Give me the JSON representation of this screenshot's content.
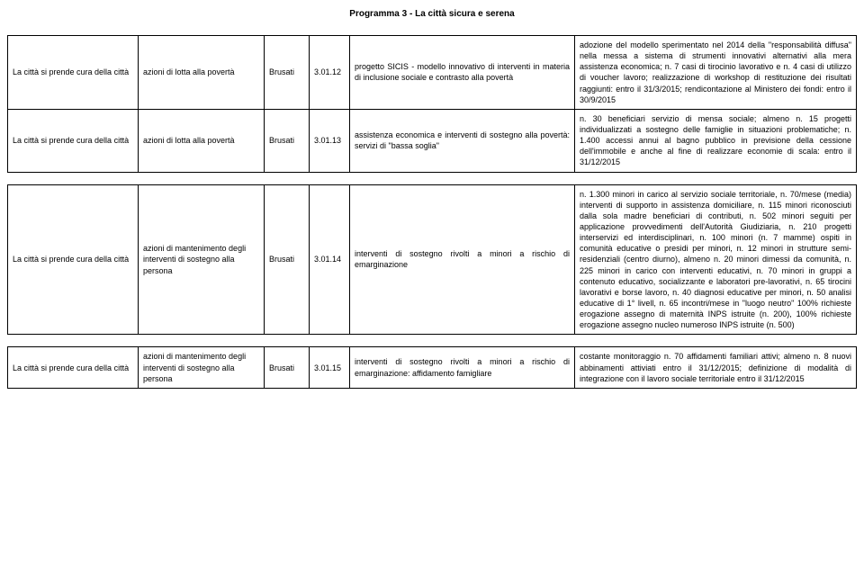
{
  "title": "Programma 3 - La città sicura e serena",
  "columns": [
    "citta",
    "azione",
    "responsabile",
    "codice",
    "descrizione",
    "indicatori"
  ],
  "rows": [
    {
      "citta": "La città si prende cura della città",
      "azione": "azioni di lotta alla povertà",
      "responsabile": "Brusati",
      "codice": "3.01.12",
      "descrizione": "progetto SICIS - modello innovativo di interventi in materia di inclusione sociale e contrasto alla povertà",
      "indicatori": "adozione del modello sperimentato nel 2014 della \"responsabilità diffusa\" nella messa a sistema di strumenti innovativi alternativi alla mera assistenza economica; n. 7 casi di tirocinio lavorativo e n. 4 casi di utilizzo di voucher lavoro; realizzazione di workshop di restituzione dei risultati raggiunti: entro il 31/3/2015; rendicontazione al Ministero dei fondi: entro il 30/9/2015"
    },
    {
      "citta": "La città si prende cura della città",
      "azione": "azioni di lotta alla povertà",
      "responsabile": "Brusati",
      "codice": "3.01.13",
      "descrizione": "assistenza economica e interventi di sostegno alla povertà: servizi di \"bassa soglia\"",
      "indicatori": "n. 30 beneficiari servizio di mensa sociale; almeno n. 15 progetti individualizzati a sostegno delle famiglie in situazioni problematiche; n. 1.400 accessi annui al bagno pubblico in previsione della cessione dell'immobile e anche al fine di realizzare economie di scala: entro il 31/12/2015"
    },
    {
      "citta": "La città si prende cura della città",
      "azione": "azioni di mantenimento degli interventi di sostegno alla persona",
      "responsabile": "Brusati",
      "codice": "3.01.14",
      "descrizione": "interventi di sostegno rivolti a minori a rischio di emarginazione",
      "indicatori": "n. 1.300 minori in carico al servizio sociale territoriale, n. 70/mese (media) interventi di supporto in assistenza domiciliare, n. 115 minori riconosciuti dalla sola madre beneficiari di contributi, n. 502 minori seguiti per applicazione provvedimenti dell'Autorità Giudiziaria, n. 210 progetti interservizi ed interdisciplinari, n. 100 minori (n. 7 mamme) ospiti in comunità educative o presidi per minori, n. 12 minori in strutture semi-residenziali (centro diurno), almeno n. 20 minori dimessi da comunità, n. 225 minori in carico con interventi educativi, n. 70 minori in gruppi a contenuto educativo, socializzante e laboratori pre-lavorativi, n. 65 tirocini lavorativi e borse lavoro, n. 40 diagnosi educative per minori, n. 50 analisi educative di 1° livell, n. 65 incontri/mese in \"luogo neutro\" 100% richieste erogazione assegno di maternità INPS istruite (n. 200), 100% richieste erogazione assegno nucleo numeroso INPS istruite (n. 500)"
    },
    {
      "citta": "La città si prende cura della città",
      "azione": "azioni di mantenimento degli interventi di sostegno alla persona",
      "responsabile": "Brusati",
      "codice": "3.01.15",
      "descrizione": "interventi di sostegno rivolti a minori a rischio di emarginazione: affidamento famigliare",
      "indicatori": "costante monitoraggio n. 70 affidamenti familiari attivi; almeno n. 8 nuovi abbinamenti attiviati entro il 31/12/2015; definizione di modalità di integrazione con il lavoro sociale territoriale entro il 31/12/2015"
    }
  ]
}
